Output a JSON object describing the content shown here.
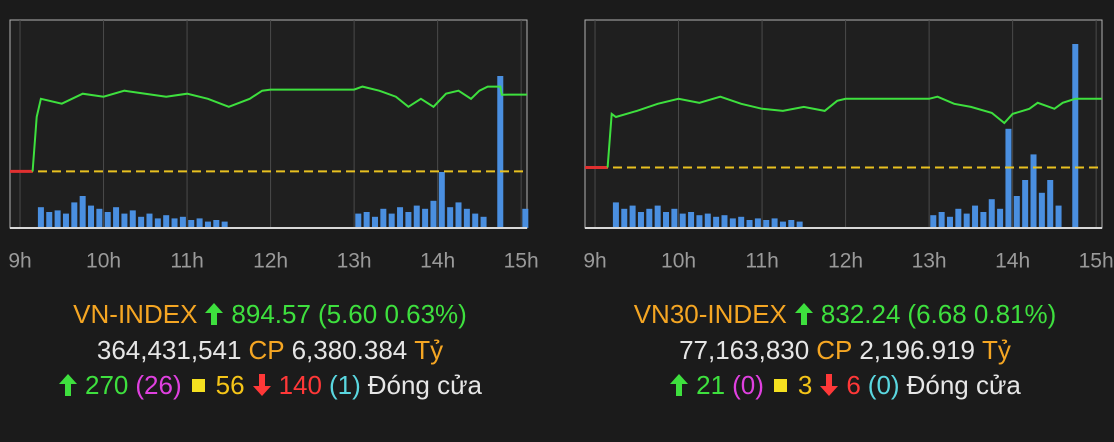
{
  "chart_data": [
    {
      "type": "line",
      "xlim": [
        8.88,
        15.07
      ],
      "ylim": [
        884.85,
        900.0
      ],
      "xticks": [
        {
          "value": 9,
          "label": "9h"
        },
        {
          "value": 10,
          "label": "10h"
        },
        {
          "value": 11,
          "label": "11h"
        },
        {
          "value": 12,
          "label": "12h"
        },
        {
          "value": 13,
          "label": "13h"
        },
        {
          "value": 14,
          "label": "14h"
        },
        {
          "value": 15,
          "label": "15h"
        }
      ],
      "grid": true,
      "color": "#3ee03e",
      "reference": 888.97,
      "reference_color": "#e8c020",
      "opening_color": "#e03030",
      "x": [
        9.15,
        9.2,
        9.25,
        9.5,
        9.75,
        10.0,
        10.25,
        10.5,
        10.75,
        11.0,
        11.25,
        11.5,
        11.75,
        11.9,
        12.0,
        13.0,
        13.1,
        13.3,
        13.5,
        13.65,
        13.8,
        13.95,
        14.1,
        14.25,
        14.4,
        14.5,
        14.6,
        14.75,
        14.77,
        15.07
      ],
      "values": [
        888.97,
        892.94,
        894.26,
        893.9,
        894.63,
        894.41,
        894.85,
        894.63,
        894.41,
        894.63,
        894.26,
        893.68,
        894.26,
        894.85,
        894.93,
        894.93,
        895.15,
        894.85,
        894.41,
        893.68,
        894.26,
        893.68,
        894.63,
        894.85,
        894.26,
        894.85,
        895.15,
        895.15,
        894.56,
        894.57
      ],
      "volume": {
        "color": "#4a8fe0",
        "ylim": [
          0,
          130
        ],
        "x": [
          9.25,
          9.35,
          9.45,
          9.55,
          9.65,
          9.75,
          9.85,
          9.95,
          10.05,
          10.15,
          10.25,
          10.35,
          10.45,
          10.55,
          10.65,
          10.75,
          10.85,
          10.95,
          11.05,
          11.15,
          11.25,
          11.35,
          11.45,
          13.05,
          13.15,
          13.25,
          13.35,
          13.45,
          13.55,
          13.65,
          13.75,
          13.85,
          13.95,
          14.05,
          14.15,
          14.25,
          14.35,
          14.45,
          14.55,
          14.75,
          15.05
        ],
        "values": [
          13,
          10,
          11,
          9,
          16,
          20,
          14,
          12,
          10,
          13,
          9,
          11,
          7,
          9,
          6,
          8,
          6,
          7,
          5,
          6,
          4,
          5,
          4,
          9,
          10,
          7,
          12,
          9,
          13,
          10,
          14,
          12,
          17,
          35,
          13,
          16,
          12,
          9,
          7,
          95,
          12
        ]
      }
    },
    {
      "type": "line",
      "xlim": [
        8.88,
        15.07
      ],
      "ylim": [
        819.67,
        839.9
      ],
      "xticks": [
        {
          "value": 9,
          "label": "9h"
        },
        {
          "value": 10,
          "label": "10h"
        },
        {
          "value": 11,
          "label": "11h"
        },
        {
          "value": 12,
          "label": "12h"
        },
        {
          "value": 13,
          "label": "13h"
        },
        {
          "value": 14,
          "label": "14h"
        },
        {
          "value": 15,
          "label": "15h"
        }
      ],
      "grid": true,
      "color": "#3ee03e",
      "reference": 825.56,
      "reference_color": "#e8c020",
      "opening_color": "#e03030",
      "x": [
        9.15,
        9.2,
        9.25,
        9.5,
        9.75,
        10.0,
        10.25,
        10.5,
        10.75,
        11.0,
        11.25,
        11.5,
        11.75,
        11.9,
        12.0,
        13.0,
        13.1,
        13.3,
        13.5,
        13.75,
        13.9,
        14.0,
        14.2,
        14.3,
        14.5,
        14.6,
        14.75,
        15.07
      ],
      "values": [
        825.56,
        830.77,
        830.47,
        831.06,
        831.75,
        832.24,
        831.85,
        832.44,
        831.75,
        831.26,
        831.06,
        831.45,
        831.06,
        832.04,
        832.24,
        832.24,
        832.44,
        831.75,
        831.45,
        830.86,
        829.88,
        830.77,
        831.26,
        831.85,
        831.26,
        831.85,
        832.24,
        832.24
      ],
      "volume": {
        "color": "#4a8fe0",
        "ylim": [
          0,
          130
        ],
        "x": [
          9.25,
          9.35,
          9.45,
          9.55,
          9.65,
          9.75,
          9.85,
          9.95,
          10.05,
          10.15,
          10.25,
          10.35,
          10.45,
          10.55,
          10.65,
          10.75,
          10.85,
          10.95,
          11.05,
          11.15,
          11.25,
          11.35,
          11.45,
          13.05,
          13.15,
          13.25,
          13.35,
          13.45,
          13.55,
          13.65,
          13.75,
          13.85,
          13.95,
          14.05,
          14.15,
          14.25,
          14.35,
          14.45,
          14.55,
          14.75
        ],
        "values": [
          16,
          12,
          14,
          10,
          12,
          14,
          10,
          12,
          9,
          10,
          8,
          9,
          7,
          8,
          6,
          7,
          5,
          6,
          5,
          6,
          4,
          5,
          4,
          8,
          10,
          7,
          12,
          9,
          14,
          10,
          18,
          12,
          62,
          20,
          30,
          46,
          22,
          30,
          14,
          115
        ]
      }
    }
  ],
  "panels": [
    {
      "name": "VN-INDEX",
      "value": "894.57",
      "change": "(5.60 0.63%)",
      "volume": "364,431,541",
      "volume_unit": "CP",
      "turnover": "6,380.384",
      "turnover_unit": "Tỷ",
      "advances": "270",
      "ceiling": "(26)",
      "unchanged": "56",
      "declines": "140",
      "floor": "(1)",
      "status": "Đóng cửa"
    },
    {
      "name": "VN30-INDEX",
      "value": "832.24",
      "change": "(6.68 0.81%)",
      "volume": "77,163,830",
      "volume_unit": "CP",
      "turnover": "2,196.919",
      "turnover_unit": "Tỷ",
      "advances": "21",
      "ceiling": "(0)",
      "unchanged": "3",
      "declines": "6",
      "floor": "(0)",
      "status": "Đóng cửa"
    }
  ]
}
